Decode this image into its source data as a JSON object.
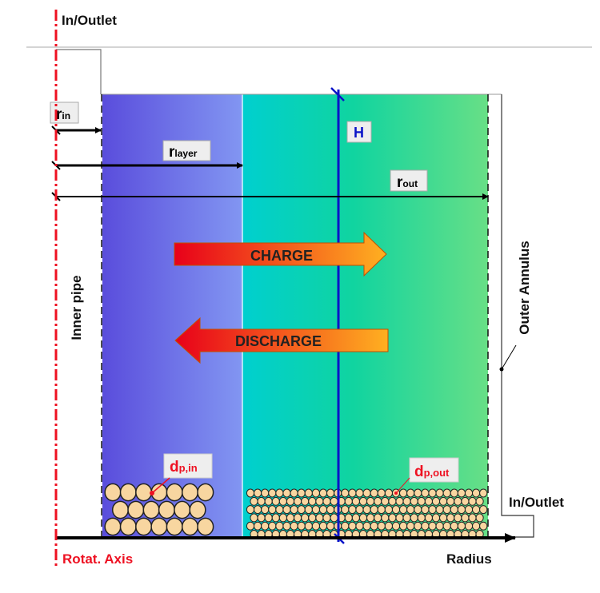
{
  "labels": {
    "top_inlet": "In/Outlet",
    "bottom_inlet": "In/Outlet",
    "inner_pipe": "Inner pipe",
    "outer_annulus": "Outer Annulus",
    "rot_axis": "Rotat. Axis",
    "radius": "Radius",
    "charge": "CHARGE",
    "discharge": "DISCHARGE",
    "height": "H",
    "r_in": {
      "main": "r",
      "sub": "in"
    },
    "r_layer": {
      "main": "r",
      "sub": "layer"
    },
    "r_out": {
      "main": "r",
      "sub": "out"
    },
    "dp_in": {
      "main": "d",
      "sub": "p,in"
    },
    "dp_out": {
      "main": "d",
      "sub": "p,out"
    }
  },
  "colors": {
    "axis_red": "#ee1122",
    "height_blue": "#0a14c8",
    "inner_layer_start": "#5a4ddc",
    "inner_layer_end": "#8296f2",
    "outer_layer_start": "#00cfcf",
    "outer_layer_end": "#68df86",
    "particle": "#f8d6a0"
  }
}
